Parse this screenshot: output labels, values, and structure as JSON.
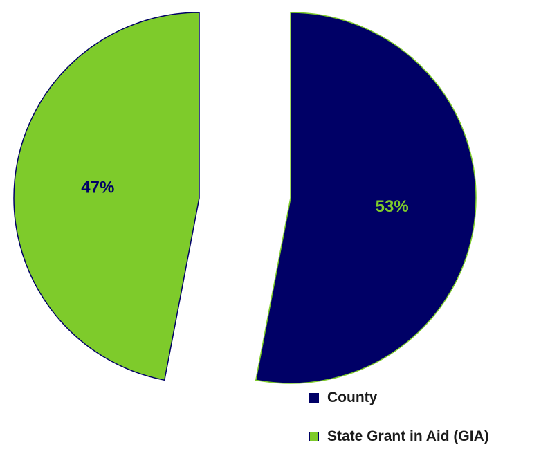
{
  "chart_data": {
    "type": "pie",
    "categories": [
      "County",
      "State Grant in Aid (GIA)"
    ],
    "values": [
      53,
      47
    ],
    "labels": [
      "53%",
      "47%"
    ],
    "legend": "bottom-right",
    "colors": {
      "County": "#000066",
      "State Grant in Aid (GIA)": "#7ECB2B"
    },
    "label_colors": {
      "County": "#7ECB2B",
      "State Grant in Aid (GIA)": "#000066"
    },
    "exploded": true
  }
}
